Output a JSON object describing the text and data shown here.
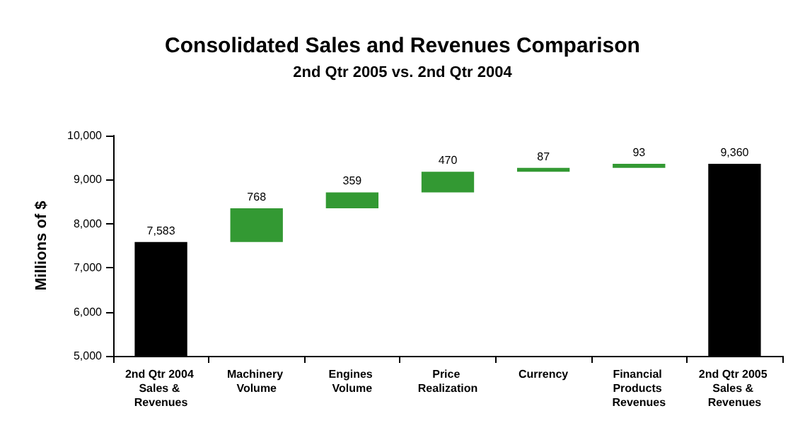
{
  "chart_data": {
    "type": "bar",
    "title": "Consolidated Sales and Revenues Comparison",
    "subtitle": "2nd Qtr 2005 vs. 2nd Qtr 2004",
    "ylabel": "Millions of $",
    "categories": [
      "2nd Qtr 2004 Sales & Revenues",
      "Machinery Volume",
      "Engines Volume",
      "Price Realization",
      "Currency",
      "Financial Products Revenues",
      "2nd Qtr 2005 Sales & Revenues"
    ],
    "values": [
      7583,
      768,
      359,
      470,
      87,
      93,
      9360
    ],
    "base": [
      null,
      7583,
      8351,
      8710,
      9180,
      9267,
      null
    ],
    "colors": [
      "#000000",
      "#339933",
      "#339933",
      "#339933",
      "#339933",
      "#339933",
      "#000000"
    ],
    "value_labels": [
      "7,583",
      "768",
      "359",
      "470",
      "87",
      "93",
      "9,360"
    ],
    "ylim": [
      5000,
      10000
    ],
    "yticks": [
      {
        "value": 5000,
        "label": "5,000"
      },
      {
        "value": 6000,
        "label": "6,000"
      },
      {
        "value": 7000,
        "label": "7,000"
      },
      {
        "value": 8000,
        "label": "8,000"
      },
      {
        "value": 9000,
        "label": "9,000"
      },
      {
        "value": 10000,
        "label": "10,000"
      }
    ],
    "grid": false
  }
}
